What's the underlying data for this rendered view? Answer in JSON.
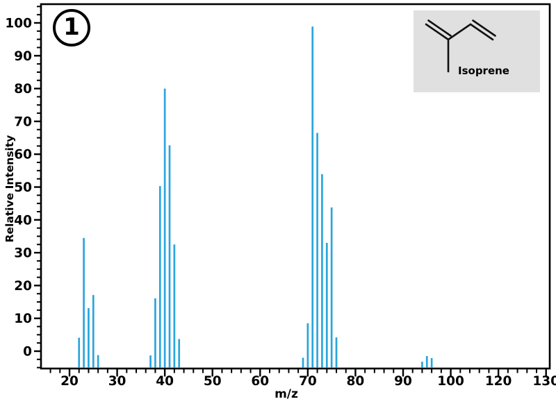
{
  "figure": {
    "number": "1",
    "compound": "Isoprene"
  },
  "colors": {
    "bar": "#2aa5dd",
    "ink": "#000000",
    "inset_background": "#e0e0e0"
  },
  "chart_data": {
    "type": "bar",
    "subtype": "mass-spectrum-stick-plot",
    "title": "",
    "xlabel": "m/z",
    "ylabel": "Relative Intensity",
    "x_tick_labels": [
      "20",
      "30",
      "40",
      "50",
      "60",
      "70",
      "80",
      "90",
      "100",
      "120",
      "130"
    ],
    "x_axis_note": "11 evenly spaced labeled major ticks; minor ticks every 2 units; the label after 100 reads 120 (110 is skipped in the source figure)",
    "y_ticks": [
      0,
      10,
      20,
      30,
      40,
      50,
      60,
      70,
      80,
      90,
      100
    ],
    "y_minor_step": 2.5,
    "ylim": [
      -5.5,
      105.5
    ],
    "grid": false,
    "legend": "none",
    "stick_baseline": "sticks are drawn from the bottom axis floor (≈ -5); trace peaks end slightly below the 0 line",
    "peaks": [
      {
        "mz": 22,
        "intensity": 4.1
      },
      {
        "mz": 23,
        "intensity": 34.5
      },
      {
        "mz": 24,
        "intensity": 13.1
      },
      {
        "mz": 25,
        "intensity": 17.1
      },
      {
        "mz": 26,
        "intensity": -1.2
      },
      {
        "mz": 37,
        "intensity": -1.3
      },
      {
        "mz": 38,
        "intensity": 16.1
      },
      {
        "mz": 39,
        "intensity": 50.3
      },
      {
        "mz": 40,
        "intensity": 80.0
      },
      {
        "mz": 41,
        "intensity": 62.7
      },
      {
        "mz": 42,
        "intensity": 32.5
      },
      {
        "mz": 43,
        "intensity": 3.7
      },
      {
        "mz": 69,
        "intensity": -2.0
      },
      {
        "mz": 70,
        "intensity": 8.5
      },
      {
        "mz": 71,
        "intensity": 98.9
      },
      {
        "mz": 72,
        "intensity": 66.5
      },
      {
        "mz": 73,
        "intensity": 53.9
      },
      {
        "mz": 74,
        "intensity": 33.0
      },
      {
        "mz": 75,
        "intensity": 43.8
      },
      {
        "mz": 76,
        "intensity": 4.2
      },
      {
        "mz": 94,
        "intensity": -3.2
      },
      {
        "mz": 95,
        "intensity": -1.5
      },
      {
        "mz": 96,
        "intensity": -2.1
      }
    ]
  }
}
